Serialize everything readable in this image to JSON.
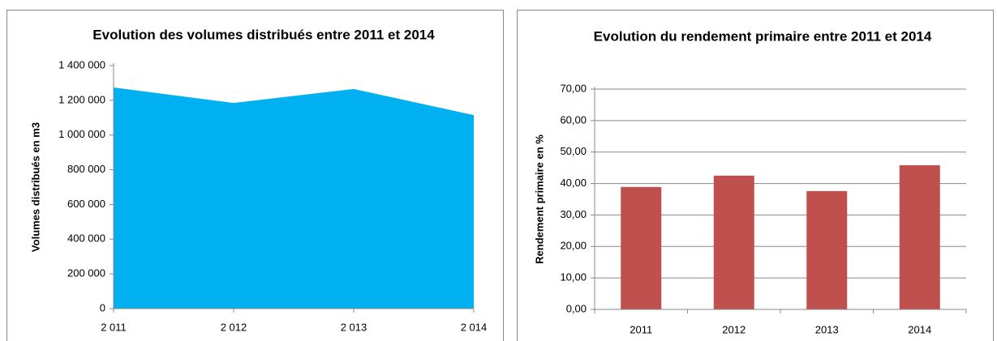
{
  "chart_data": [
    {
      "type": "area",
      "title": "Evolution des volumes distribués entre 2011 et 2014",
      "y_label": "Volumes distribués en m3",
      "categories": [
        "2 011",
        "2 012",
        "2 013",
        "2 014"
      ],
      "values": [
        1274000,
        1185000,
        1265000,
        1115000
      ],
      "color": "#00b0f0",
      "ylim": [
        0,
        1400000
      ],
      "yticks": [
        0,
        {
          "value": 200000,
          "label": "200 000"
        },
        {
          "value": 400000,
          "label": "400 000"
        },
        {
          "value": 600000,
          "label": "600 000"
        },
        {
          "value": 800000,
          "label": "800 000"
        },
        {
          "value": 1000000,
          "label": "1 000 000"
        },
        {
          "value": 1200000,
          "label": "1 200 000"
        },
        {
          "value": 1400000,
          "label": "1 400 000"
        }
      ],
      "grid": false
    },
    {
      "type": "bar",
      "title": "Evolution du rendement primaire entre 2011 et 2014",
      "y_label": "Rendement primaire en %",
      "categories": [
        "2011",
        "2012",
        "2013",
        "2014"
      ],
      "values": [
        38.9,
        42.5,
        37.6,
        45.8
      ],
      "color": "#c0504d",
      "ylim": [
        0,
        70
      ],
      "yticks": [
        {
          "value": 0,
          "label": "0,00"
        },
        {
          "value": 10,
          "label": "10,00"
        },
        {
          "value": 20,
          "label": "20,00"
        },
        {
          "value": 30,
          "label": "30,00"
        },
        {
          "value": 40,
          "label": "40,00"
        },
        {
          "value": 50,
          "label": "50,00"
        },
        {
          "value": 60,
          "label": "60,00"
        },
        {
          "value": 70,
          "label": "70,00"
        }
      ],
      "grid": true
    }
  ]
}
